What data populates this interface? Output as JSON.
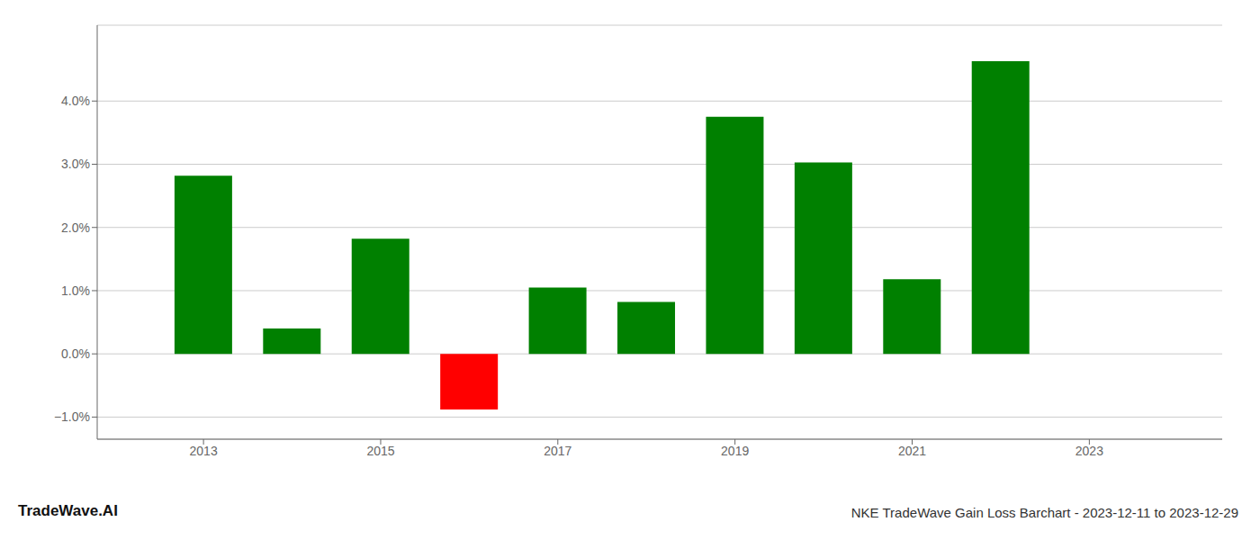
{
  "chart_data": {
    "type": "bar",
    "title": "NKE TradeWave Gain Loss Barchart - 2023-12-11 to 2023-12-29",
    "annotations": [
      "TradeWave.AI"
    ],
    "x": [
      2013,
      2014,
      2015,
      2016,
      2017,
      2018,
      2019,
      2020,
      2021,
      2022
    ],
    "values": [
      0.0282,
      0.004,
      0.0182,
      -0.0088,
      0.0105,
      0.0082,
      0.0375,
      0.0303,
      0.0118,
      0.0463
    ],
    "colors": [
      "#008000",
      "#008000",
      "#008000",
      "#ff0000",
      "#008000",
      "#008000",
      "#008000",
      "#008000",
      "#008000",
      "#008000"
    ],
    "xlim": [
      2011.8,
      2024.5
    ],
    "xticks": [
      2013,
      2015,
      2017,
      2019,
      2021,
      2023
    ],
    "ylim": [
      -0.0135,
      0.052
    ],
    "yticks": [
      {
        "value": -0.01,
        "label": "−1.0%"
      },
      {
        "value": 0.0,
        "label": "0.0%"
      },
      {
        "value": 0.01,
        "label": "1.0%"
      },
      {
        "value": 0.02,
        "label": "2.0%"
      },
      {
        "value": 0.03,
        "label": "3.0%"
      },
      {
        "value": 0.04,
        "label": "4.0%"
      }
    ],
    "grid": true
  }
}
